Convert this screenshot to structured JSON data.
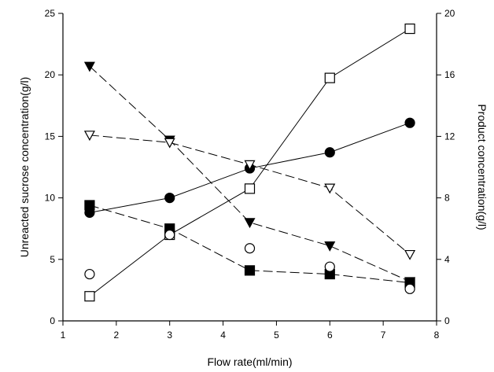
{
  "chart_data": {
    "type": "line",
    "title": "",
    "xlabel": "Flow rate(ml/min)",
    "ylabel_left": "Unreacted sucrose concentration(g/l)",
    "ylabel_right": "Product concentration(g/l)",
    "xlim": [
      1,
      8
    ],
    "ylim_left": [
      0,
      25
    ],
    "ylim_right": [
      0,
      20
    ],
    "x_ticks": [
      1,
      2,
      3,
      4,
      5,
      6,
      7,
      8
    ],
    "y_left_ticks": [
      0,
      5,
      10,
      15,
      20,
      25
    ],
    "y_right_ticks": [
      0,
      4,
      8,
      12,
      16,
      20
    ],
    "grid": false,
    "legend": "none",
    "x": [
      1.5,
      3,
      4.5,
      6,
      7.5
    ],
    "series": [
      {
        "axis": "right",
        "marker": "square-open",
        "line": "solid",
        "values": [
          1.6,
          5.6,
          8.6,
          15.8,
          19.0
        ]
      },
      {
        "axis": "left",
        "marker": "circle-filled",
        "line": "solid",
        "values": [
          8.8,
          10.0,
          12.4,
          13.7,
          16.1
        ]
      },
      {
        "axis": "left",
        "marker": "triangle-down-filled",
        "line": "dashed",
        "values": [
          20.7,
          14.7,
          8.0,
          6.1,
          3.2
        ]
      },
      {
        "axis": "left",
        "marker": "triangle-down-open",
        "line": "dashed",
        "values": [
          15.1,
          14.5,
          12.7,
          10.8,
          5.4
        ]
      },
      {
        "axis": "left",
        "marker": "square-filled",
        "line": "dashed",
        "values": [
          9.4,
          7.5,
          4.1,
          3.8,
          3.1
        ]
      },
      {
        "axis": "left",
        "marker": "circle-open",
        "line": "none",
        "values": [
          3.8,
          7.0,
          5.9,
          4.4,
          2.6
        ]
      }
    ]
  }
}
